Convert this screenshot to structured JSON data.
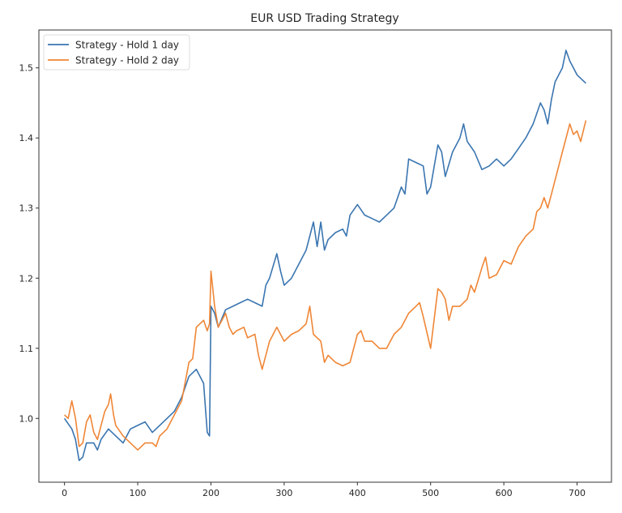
{
  "chart_data": {
    "type": "line",
    "title": "EUR USD Trading Strategy",
    "xlabel": "",
    "ylabel": "",
    "xlim": [
      -35,
      747
    ],
    "ylim": [
      0.909,
      1.554
    ],
    "xticks": [
      0,
      100,
      200,
      300,
      400,
      500,
      600,
      700
    ],
    "xtick_labels": [
      "0",
      "100",
      "200",
      "300",
      "400",
      "500",
      "600",
      "700"
    ],
    "yticks": [
      1.0,
      1.1,
      1.2,
      1.3,
      1.4,
      1.5
    ],
    "ytick_labels": [
      "1.0",
      "1.1",
      "1.2",
      "1.3",
      "1.4",
      "1.5"
    ],
    "grid": false,
    "legend_position": "top-left",
    "series": [
      {
        "name": "Strategy - Hold 1 day",
        "color": "#3a75b0",
        "x": [
          0,
          10,
          15,
          20,
          25,
          30,
          40,
          45,
          50,
          60,
          70,
          80,
          90,
          100,
          110,
          120,
          130,
          140,
          150,
          160,
          170,
          180,
          190,
          195,
          198,
          200,
          205,
          210,
          220,
          230,
          240,
          250,
          260,
          270,
          275,
          280,
          290,
          295,
          300,
          310,
          320,
          330,
          340,
          345,
          350,
          355,
          360,
          370,
          380,
          385,
          390,
          400,
          410,
          420,
          430,
          440,
          450,
          460,
          465,
          470,
          480,
          490,
          495,
          500,
          510,
          515,
          520,
          530,
          540,
          545,
          550,
          560,
          570,
          580,
          590,
          600,
          610,
          620,
          630,
          640,
          650,
          655,
          660,
          665,
          670,
          675,
          680,
          685,
          690,
          700,
          705,
          712
        ],
        "y": [
          1.0,
          0.985,
          0.97,
          0.94,
          0.945,
          0.965,
          0.965,
          0.955,
          0.97,
          0.985,
          0.975,
          0.965,
          0.985,
          0.99,
          0.995,
          0.98,
          0.99,
          1.0,
          1.01,
          1.03,
          1.06,
          1.07,
          1.05,
          0.98,
          0.975,
          1.16,
          1.15,
          1.13,
          1.155,
          1.16,
          1.165,
          1.17,
          1.165,
          1.16,
          1.19,
          1.2,
          1.235,
          1.21,
          1.19,
          1.2,
          1.22,
          1.24,
          1.28,
          1.245,
          1.28,
          1.24,
          1.255,
          1.265,
          1.27,
          1.26,
          1.29,
          1.305,
          1.29,
          1.285,
          1.28,
          1.29,
          1.3,
          1.33,
          1.32,
          1.37,
          1.365,
          1.36,
          1.32,
          1.33,
          1.39,
          1.38,
          1.345,
          1.38,
          1.4,
          1.42,
          1.395,
          1.38,
          1.355,
          1.36,
          1.37,
          1.36,
          1.37,
          1.385,
          1.4,
          1.42,
          1.45,
          1.44,
          1.42,
          1.455,
          1.48,
          1.49,
          1.5,
          1.525,
          1.51,
          1.49,
          1.485,
          1.478
        ]
      },
      {
        "name": "Strategy - Hold 2 day",
        "color": "#ef8636",
        "x": [
          0,
          5,
          10,
          15,
          20,
          25,
          30,
          35,
          40,
          45,
          50,
          55,
          60,
          63,
          67,
          70,
          80,
          90,
          100,
          110,
          120,
          125,
          130,
          140,
          150,
          160,
          170,
          175,
          180,
          190,
          195,
          198,
          200,
          205,
          210,
          215,
          220,
          225,
          230,
          235,
          245,
          250,
          260,
          265,
          270,
          280,
          290,
          300,
          310,
          320,
          330,
          335,
          340,
          350,
          355,
          360,
          370,
          380,
          390,
          400,
          405,
          410,
          420,
          430,
          440,
          450,
          460,
          470,
          480,
          485,
          490,
          500,
          510,
          515,
          520,
          525,
          530,
          540,
          550,
          555,
          560,
          570,
          575,
          580,
          590,
          600,
          610,
          620,
          630,
          640,
          645,
          650,
          655,
          660,
          665,
          670,
          680,
          690,
          695,
          700,
          705,
          712
        ],
        "y": [
          1.005,
          1.0,
          1.025,
          1.0,
          0.96,
          0.965,
          0.995,
          1.005,
          0.98,
          0.97,
          0.99,
          1.01,
          1.02,
          1.035,
          1.005,
          0.99,
          0.975,
          0.965,
          0.955,
          0.965,
          0.965,
          0.96,
          0.975,
          0.985,
          1.005,
          1.025,
          1.08,
          1.085,
          1.13,
          1.14,
          1.125,
          1.135,
          1.21,
          1.16,
          1.13,
          1.14,
          1.15,
          1.13,
          1.12,
          1.125,
          1.13,
          1.115,
          1.12,
          1.09,
          1.07,
          1.11,
          1.13,
          1.11,
          1.12,
          1.125,
          1.135,
          1.16,
          1.12,
          1.11,
          1.08,
          1.09,
          1.08,
          1.075,
          1.08,
          1.12,
          1.125,
          1.11,
          1.11,
          1.1,
          1.1,
          1.12,
          1.13,
          1.15,
          1.16,
          1.165,
          1.145,
          1.1,
          1.185,
          1.18,
          1.17,
          1.14,
          1.16,
          1.16,
          1.17,
          1.19,
          1.18,
          1.215,
          1.23,
          1.2,
          1.205,
          1.225,
          1.22,
          1.245,
          1.26,
          1.27,
          1.295,
          1.3,
          1.315,
          1.3,
          1.32,
          1.34,
          1.38,
          1.42,
          1.405,
          1.41,
          1.395,
          1.425
        ]
      }
    ]
  }
}
